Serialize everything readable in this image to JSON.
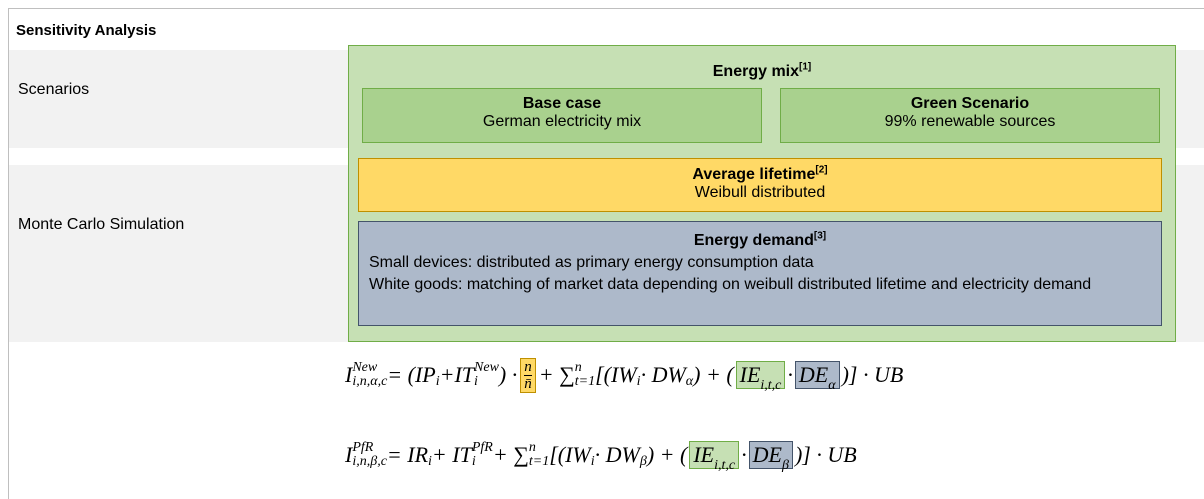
{
  "title": "Sensitivity Analysis",
  "rows": [
    {
      "label": "Scenarios"
    },
    {
      "label": "Monte Carlo Simulation"
    }
  ],
  "energy_mix": {
    "title": "Energy mix",
    "ref": "[1]",
    "base_case": {
      "title": "Base case",
      "text": "German electricity mix"
    },
    "green_scenario": {
      "title": "Green Scenario",
      "text": "99% renewable sources"
    }
  },
  "lifetime": {
    "title": "Average lifetime",
    "ref": "[2]",
    "text": "Weibull distributed"
  },
  "demand": {
    "title": "Energy demand",
    "ref": "[3]",
    "lines": [
      "Small devices: distributed as primary energy consumption data",
      "White goods: matching of market data depending on weibull distributed lifetime and electricity demand"
    ]
  },
  "formulas": [
    [
      "I",
      "New",
      "i,n,α,c",
      " = (IP",
      "i",
      "+IT",
      "i",
      "New",
      ") · ",
      "n",
      "n̄",
      " + ∑",
      "t=1",
      "n",
      "[(IW",
      "i",
      " · DW",
      "α",
      ") + (",
      "IE",
      "i,t,c",
      "·",
      "DE",
      "α",
      ")] · UB"
    ],
    [
      "I",
      "PfR",
      "i,n,β,c",
      " = IR",
      "i",
      " + IT",
      "i",
      "PfR",
      " + ∑",
      "t=1",
      "n",
      "[(IW",
      "i",
      " · DW",
      "β",
      ") + (",
      "IE",
      "i,t,c",
      "·",
      "DE",
      "β",
      ")] · UB"
    ]
  ]
}
